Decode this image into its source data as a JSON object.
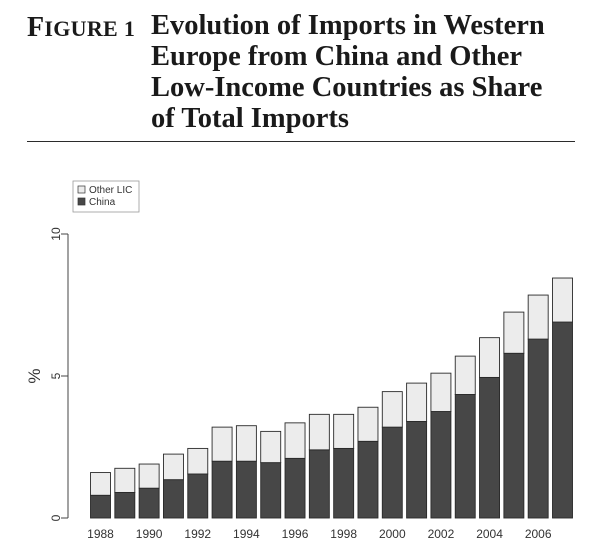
{
  "figure": {
    "label": "Figure 1",
    "label_first": "F",
    "label_rest": "IGURE 1",
    "title_lines": [
      "Evolution of Imports in Western",
      "Europe from China and Other",
      "Low-Income Countries as Share",
      "of Total Imports"
    ]
  },
  "chart_data": {
    "type": "bar",
    "stacked": true,
    "title": "",
    "xlabel": "",
    "ylabel": "%",
    "ylim": [
      0,
      10
    ],
    "yticks": [
      "0",
      "5",
      "10"
    ],
    "x": [
      1988,
      1989,
      1990,
      1991,
      1992,
      1993,
      1994,
      1995,
      1996,
      1997,
      1998,
      1999,
      2000,
      2001,
      2002,
      2003,
      2004,
      2005,
      2006,
      2007
    ],
    "xtick_labels": [
      "1988",
      "",
      "1990",
      "",
      "1992",
      "",
      "1994",
      "",
      "1996",
      "",
      "1998",
      "",
      "2000",
      "",
      "2002",
      "",
      "2004",
      "",
      "2006",
      ""
    ],
    "series": [
      {
        "name": "China",
        "color": "#474747",
        "values": [
          0.8,
          0.9,
          1.05,
          1.35,
          1.55,
          2.0,
          2.0,
          1.95,
          2.1,
          2.4,
          2.45,
          2.7,
          3.2,
          3.4,
          3.75,
          4.35,
          4.95,
          5.8,
          6.3,
          6.9
        ]
      },
      {
        "name": "Other LIC",
        "color": "#ececec",
        "values": [
          0.8,
          0.85,
          0.85,
          0.9,
          0.9,
          1.2,
          1.25,
          1.1,
          1.25,
          1.25,
          1.2,
          1.2,
          1.25,
          1.35,
          1.35,
          1.35,
          1.4,
          1.45,
          1.55,
          1.55
        ]
      }
    ],
    "legend": {
      "position": "top-left",
      "entries": [
        "Other LIC",
        "China"
      ]
    },
    "grid": false
  }
}
